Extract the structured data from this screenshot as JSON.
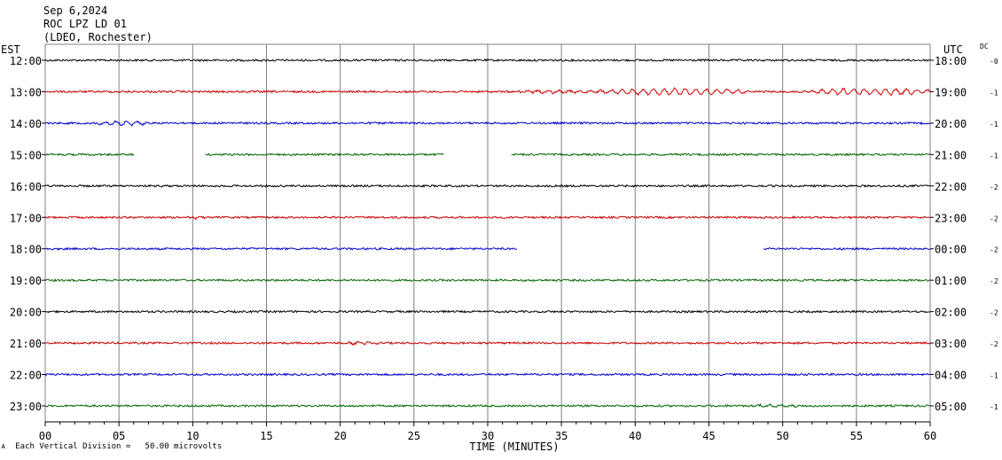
{
  "header": {
    "date": "Sep 6,2024",
    "station": "ROC LPZ LD 01",
    "network": "(LDEO, Rochester)",
    "left_tz": "EST",
    "right_tz": "UTC",
    "dc_label": "DC",
    "scale_note": "Each Vertical Division =   50.00 microvolts",
    "scale_marker": "ᴀ"
  },
  "chart_data": {
    "type": "line",
    "title": "",
    "xlabel": "TIME (MINUTES)",
    "ylabel": "",
    "xlim": [
      0,
      60
    ],
    "x_ticks": [
      "00",
      "05",
      "10",
      "15",
      "20",
      "25",
      "30",
      "35",
      "40",
      "45",
      "50",
      "55",
      "60"
    ],
    "grid": true,
    "rows": [
      {
        "est": "12:00",
        "utc": "18:00",
        "dc": "-0",
        "color": "#000000",
        "gaps": [],
        "bursts": []
      },
      {
        "est": "13:00",
        "utc": "19:00",
        "dc": "-1",
        "color": "#cc0000",
        "gaps": [],
        "bursts": [
          [
            32,
            37.5,
            1.6
          ],
          [
            37.5,
            48,
            3.8
          ],
          [
            52,
            60,
            3.8
          ]
        ]
      },
      {
        "est": "14:00",
        "utc": "20:00",
        "dc": "-1",
        "color": "#0000cc",
        "gaps": [],
        "bursts": [
          [
            3.5,
            7,
            2.6
          ]
        ]
      },
      {
        "est": "15:00",
        "utc": "21:00",
        "dc": "-1",
        "color": "#006600",
        "gaps": [
          [
            6,
            10.8
          ],
          [
            27,
            31.6
          ]
        ],
        "bursts": []
      },
      {
        "est": "16:00",
        "utc": "22:00",
        "dc": "-2",
        "color": "#000000",
        "gaps": [],
        "bursts": []
      },
      {
        "est": "17:00",
        "utc": "23:00",
        "dc": "-2",
        "color": "#cc0000",
        "gaps": [],
        "bursts": [
          [
            10,
            10.8,
            2
          ]
        ]
      },
      {
        "est": "18:00",
        "utc": "00:00",
        "dc": "-2",
        "color": "#0000cc",
        "gaps": [
          [
            32,
            48.7
          ]
        ],
        "bursts": []
      },
      {
        "est": "19:00",
        "utc": "01:00",
        "dc": "-2",
        "color": "#006600",
        "gaps": [],
        "bursts": []
      },
      {
        "est": "20:00",
        "utc": "02:00",
        "dc": "-2",
        "color": "#000000",
        "gaps": [],
        "bursts": []
      },
      {
        "est": "21:00",
        "utc": "03:00",
        "dc": "-2",
        "color": "#cc0000",
        "gaps": [],
        "bursts": [
          [
            20.5,
            22.5,
            1.6
          ]
        ]
      },
      {
        "est": "22:00",
        "utc": "04:00",
        "dc": "-1",
        "color": "#0000cc",
        "gaps": [],
        "bursts": []
      },
      {
        "est": "23:00",
        "utc": "05:00",
        "dc": "-1",
        "color": "#006600",
        "gaps": [],
        "bursts": [
          [
            48,
            51,
            1.6
          ]
        ]
      }
    ]
  }
}
